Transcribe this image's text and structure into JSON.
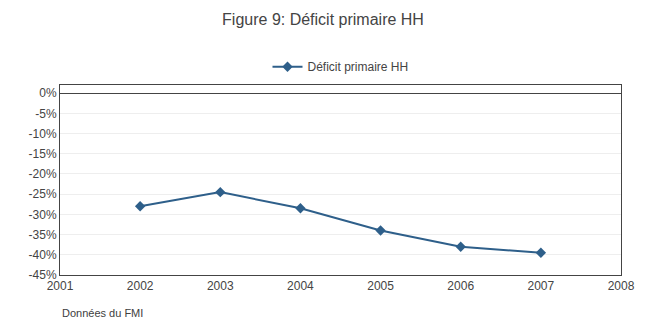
{
  "chart_data": {
    "type": "line",
    "title": "Figure 9: Déficit primaire HH",
    "x": [
      2002,
      2003,
      2004,
      2005,
      2006,
      2007
    ],
    "series": [
      {
        "name": "Déficit primaire HH",
        "color": "#2e5f8a",
        "marker": "diamond",
        "line_style": "solid",
        "values": [
          -0.28,
          -0.245,
          -0.285,
          -0.34,
          -0.38,
          -0.395
        ]
      }
    ],
    "xlim": [
      2001,
      2008
    ],
    "xticks": [
      2001,
      2002,
      2003,
      2004,
      2005,
      2006,
      2007,
      2008
    ],
    "ylim": [
      -0.45,
      0.02
    ],
    "yticks": [
      {
        "value": 0.0,
        "label": "0%"
      },
      {
        "value": -0.05,
        "label": "-5%"
      },
      {
        "value": -0.1,
        "label": "-10%"
      },
      {
        "value": -0.15,
        "label": "-15%"
      },
      {
        "value": -0.2,
        "label": "-20%"
      },
      {
        "value": -0.25,
        "label": "-25%"
      },
      {
        "value": -0.3,
        "label": "-30%"
      },
      {
        "value": -0.35,
        "label": "-35%"
      },
      {
        "value": -0.4,
        "label": "-40%"
      },
      {
        "value": -0.45,
        "label": "-45%"
      }
    ],
    "grid": true,
    "legend": "top",
    "annotations": [
      "Données du FMI"
    ]
  }
}
